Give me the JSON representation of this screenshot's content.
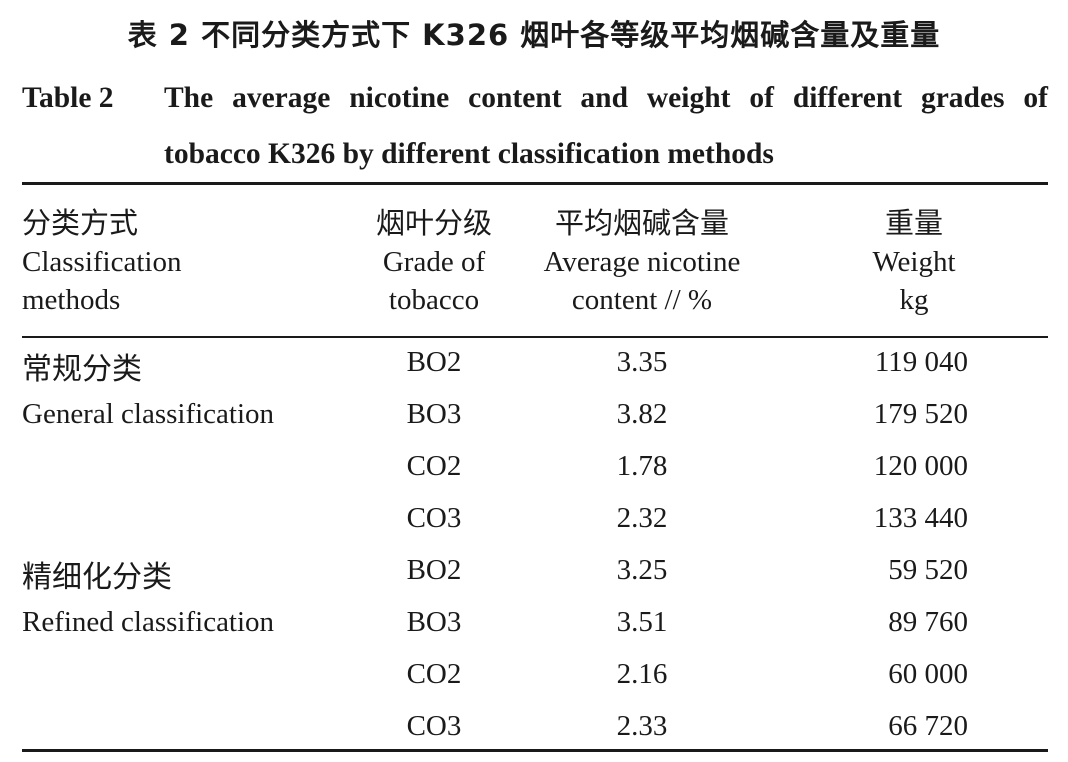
{
  "title": {
    "cn": "表 2   不同分类方式下 K326 烟叶各等级平均烟碱含量及重量",
    "en_label": "Table 2",
    "en_text": "The average nicotine content and weight of different grades of tobacco K326 by different classification methods"
  },
  "headers": {
    "method": {
      "cn": "分类方式",
      "en1": "Classification",
      "en2": "methods"
    },
    "grade": {
      "cn": "烟叶分级",
      "en1": "Grade of",
      "en2": "tobacco"
    },
    "nicotine": {
      "cn": "平均烟碱含量",
      "en1": "Average nicotine",
      "en2": "content // %"
    },
    "weight": {
      "cn": "重量",
      "en1": "Weight",
      "en2": "kg"
    }
  },
  "rows": [
    {
      "method": "常规分类",
      "grade": "BO2",
      "nicotine": "3.35",
      "weight": "119 040"
    },
    {
      "method": "General classification",
      "grade": "BO3",
      "nicotine": "3.82",
      "weight": "179 520"
    },
    {
      "method": "",
      "grade": "CO2",
      "nicotine": "1.78",
      "weight": "120 000"
    },
    {
      "method": "",
      "grade": "CO3",
      "nicotine": "2.32",
      "weight": "133 440"
    },
    {
      "method": "精细化分类",
      "grade": "BO2",
      "nicotine": "3.25",
      "weight": "59 520"
    },
    {
      "method": "Refined classification",
      "grade": "BO3",
      "nicotine": "3.51",
      "weight": "89 760"
    },
    {
      "method": "",
      "grade": "CO2",
      "nicotine": "2.16",
      "weight": "60 000"
    },
    {
      "method": "",
      "grade": "CO3",
      "nicotine": "2.33",
      "weight": "66 720"
    }
  ]
}
